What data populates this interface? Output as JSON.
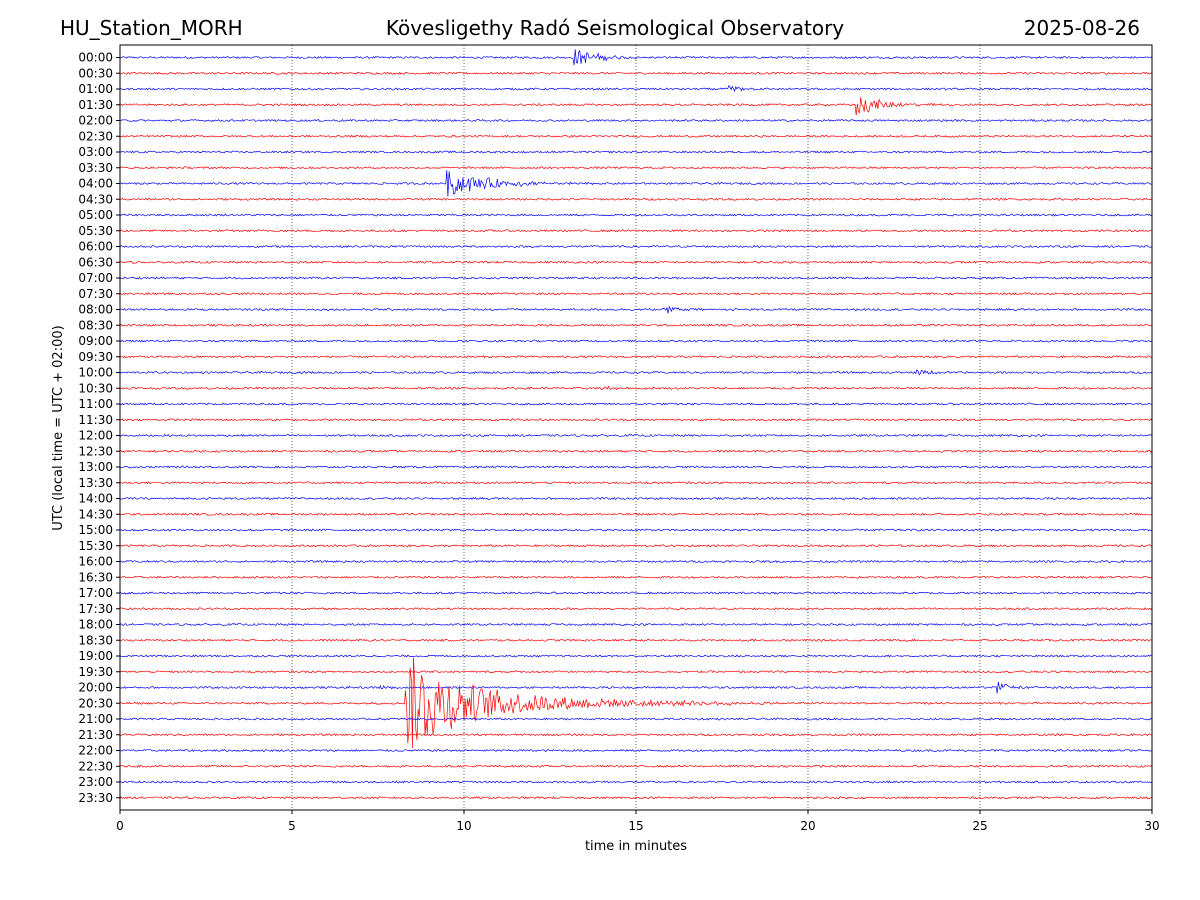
{
  "header": {
    "station": "HU_Station_MORH",
    "observatory": "Kövesligethy Radó Seismological Observatory",
    "date": "2025-08-26"
  },
  "chart_data": {
    "type": "line",
    "title": "Kövesligethy Radó Seismological Observatory",
    "xlabel": "time in minutes",
    "ylabel": "UTC (local time = UTC + 02:00)",
    "xlim": [
      0,
      30
    ],
    "xticks": [
      "0",
      "5",
      "10",
      "15",
      "20",
      "25",
      "30"
    ],
    "grid": "vertical dotted lines at 5-minute intervals",
    "colors": {
      "even_rows": "#0000ff",
      "odd_rows": "#ff0000",
      "grid": "#000000"
    },
    "rows": [
      "00:00",
      "00:30",
      "01:00",
      "01:30",
      "02:00",
      "02:30",
      "03:00",
      "03:30",
      "04:00",
      "04:30",
      "05:00",
      "05:30",
      "06:00",
      "06:30",
      "07:00",
      "07:30",
      "08:00",
      "08:30",
      "09:00",
      "09:30",
      "10:00",
      "10:30",
      "11:00",
      "11:30",
      "12:00",
      "12:30",
      "13:00",
      "13:30",
      "14:00",
      "14:30",
      "15:00",
      "15:30",
      "16:00",
      "16:30",
      "17:00",
      "17:30",
      "18:00",
      "18:30",
      "19:00",
      "19:30",
      "20:00",
      "20:30",
      "21:00",
      "21:30",
      "22:00",
      "22:30",
      "23:00",
      "23:30"
    ],
    "events": [
      {
        "row": "00:00",
        "start_min": 13.2,
        "amplitude": 1.1,
        "decay_min": 0.6,
        "coda_min": 2.5
      },
      {
        "row": "01:00",
        "start_min": 17.7,
        "amplitude": 0.35,
        "decay_min": 0.4,
        "coda_min": 1.5
      },
      {
        "row": "01:30",
        "start_min": 21.4,
        "amplitude": 1.5,
        "decay_min": 0.5,
        "coda_min": 4.0
      },
      {
        "row": "04:00",
        "start_min": 9.5,
        "amplitude": 1.6,
        "decay_min": 1.0,
        "coda_min": 4.5
      },
      {
        "row": "08:00",
        "start_min": 15.9,
        "amplitude": 0.4,
        "decay_min": 0.4,
        "coda_min": 1.0
      },
      {
        "row": "10:00",
        "start_min": 23.1,
        "amplitude": 0.35,
        "decay_min": 0.5,
        "coda_min": 1.5
      },
      {
        "row": "10:30",
        "start_min": 14.0,
        "amplitude": 0.3,
        "decay_min": 0.3,
        "coda_min": 0.6
      },
      {
        "row": "20:00",
        "start_min": 7.5,
        "amplitude": 0.35,
        "decay_min": 0.3,
        "coda_min": 0.8
      },
      {
        "row": "20:00",
        "start_min": 25.5,
        "amplitude": 0.8,
        "decay_min": 0.3,
        "coda_min": 1.0
      },
      {
        "row": "20:30",
        "start_min": 8.3,
        "amplitude": 6.0,
        "decay_min": 1.6,
        "coda_min": 12.0
      }
    ]
  }
}
